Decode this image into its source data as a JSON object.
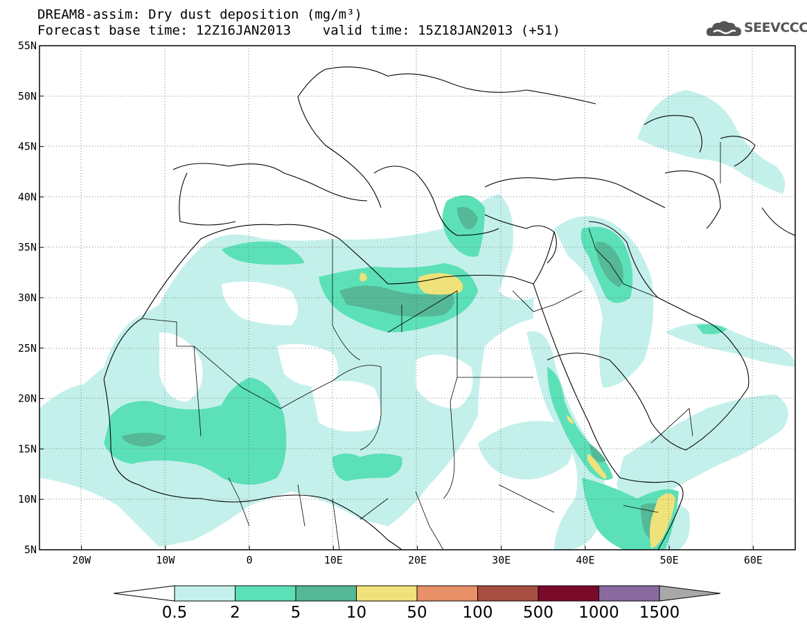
{
  "header": {
    "title_line1": "DREAM8-assim: Dry dust deposition (mg/m³)",
    "title_line2": "Forecast base time: 12Z16JAN2013    valid time: 15Z18JAN2013 (+51)",
    "logo_text": "SEEVCCC"
  },
  "map": {
    "lon_range": [
      -25,
      65
    ],
    "lat_range": [
      5,
      55
    ],
    "lat_ticks": [
      {
        "value": 55,
        "label": "55N"
      },
      {
        "value": 50,
        "label": "50N"
      },
      {
        "value": 45,
        "label": "45N"
      },
      {
        "value": 40,
        "label": "40N"
      },
      {
        "value": 35,
        "label": "35N"
      },
      {
        "value": 30,
        "label": "30N"
      },
      {
        "value": 25,
        "label": "25N"
      },
      {
        "value": 20,
        "label": "20N"
      },
      {
        "value": 15,
        "label": "15N"
      },
      {
        "value": 10,
        "label": "10N"
      },
      {
        "value": 5,
        "label": "5N"
      }
    ],
    "lon_ticks": [
      {
        "value": -20,
        "label": "20W"
      },
      {
        "value": -10,
        "label": "10W"
      },
      {
        "value": 0,
        "label": "0"
      },
      {
        "value": 10,
        "label": "10E"
      },
      {
        "value": 20,
        "label": "20E"
      },
      {
        "value": 30,
        "label": "30E"
      },
      {
        "value": 40,
        "label": "40E"
      },
      {
        "value": 50,
        "label": "50E"
      },
      {
        "value": 60,
        "label": "60E"
      }
    ],
    "background_color": "#ffffff",
    "coastline_color": "#000000"
  },
  "legend": {
    "levels": [
      "0.5",
      "2",
      "5",
      "10",
      "50",
      "100",
      "500",
      "1000",
      "1500"
    ],
    "colors": [
      "#c4f0eb",
      "#5ce0b8",
      "#55b896",
      "#f0e27a",
      "#e89068",
      "#a84e40",
      "#7a0a2a",
      "#8a6a9e",
      "#a8a8a8"
    ]
  }
}
